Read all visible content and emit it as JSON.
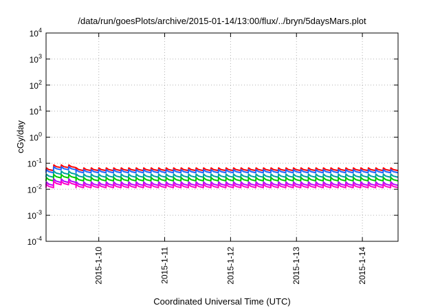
{
  "chart_data": {
    "type": "line",
    "title": "/data/run/goesPlots/archive/2015-01-14/13:00/flux/../bryn/5daysMars.plot",
    "xlabel": "Coordinated Universal Time (UTC)",
    "ylabel": "cGy/day",
    "y_scale": "log",
    "ylim": [
      0.0001,
      10000
    ],
    "y_ticks": [
      {
        "value": 0.0001,
        "base": "10",
        "exp": "-4"
      },
      {
        "value": 0.001,
        "base": "10",
        "exp": "-3"
      },
      {
        "value": 0.01,
        "base": "10",
        "exp": "-2"
      },
      {
        "value": 0.1,
        "base": "10",
        "exp": "-1"
      },
      {
        "value": 1,
        "base": "10",
        "exp": "0"
      },
      {
        "value": 10,
        "base": "10",
        "exp": "1"
      },
      {
        "value": 100,
        "base": "10",
        "exp": "2"
      },
      {
        "value": 1000,
        "base": "10",
        "exp": "3"
      },
      {
        "value": 10000,
        "base": "10",
        "exp": "4"
      }
    ],
    "xlim": [
      "2015-01-09T04:48",
      "2015-01-14T13:00"
    ],
    "x_ticks": [
      "2015-1-10",
      "2015-1-11",
      "2015-1-12",
      "2015-1-13",
      "2015-1-14"
    ],
    "grid": true,
    "series": [
      {
        "color": "#ff0000",
        "base": 0.052,
        "peak": 0.066
      },
      {
        "color": "#1e64ff",
        "base": 0.043,
        "peak": 0.056
      },
      {
        "color": "#00a0a0",
        "base": 0.029,
        "peak": 0.038
      },
      {
        "color": "#00c800",
        "base": 0.021,
        "peak": 0.028
      },
      {
        "color": "#b400ff",
        "base": 0.014,
        "peak": 0.019
      },
      {
        "color": "#ff00c8",
        "base": 0.0115,
        "peak": 0.0155
      }
    ],
    "sawtooth_teeth": 47,
    "anomaly": {
      "start": "2015-01-09T07:00",
      "end": "2015-01-09T14:30",
      "multiplier": 1.3
    }
  }
}
